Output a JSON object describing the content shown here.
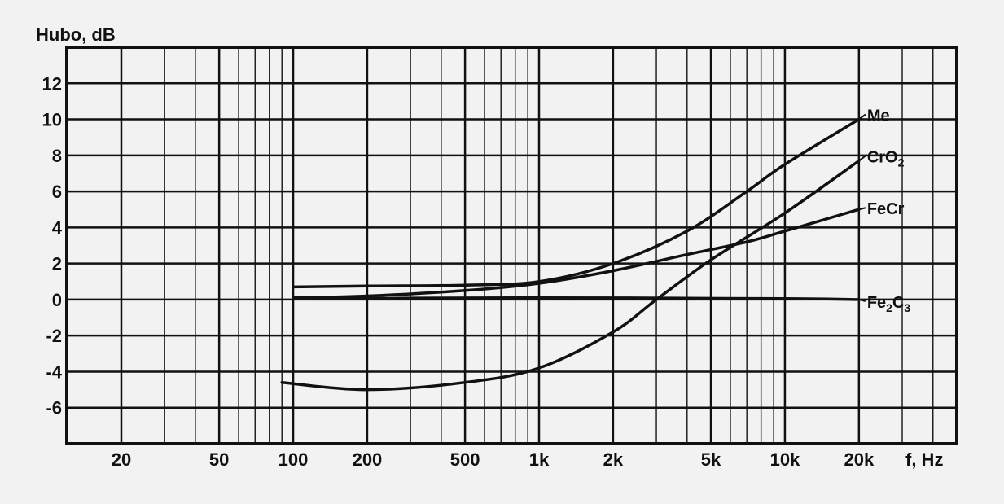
{
  "chart_data": {
    "type": "line",
    "title": "",
    "ylabel": "Hubo, dB",
    "xlabel": "f, Hz",
    "xscale": "log",
    "xlim": [
      12,
      50000
    ],
    "ylim": [
      -8,
      14
    ],
    "grid": true,
    "legend": "none (series labelled at line ends)",
    "x_ticks": [
      {
        "value": 20,
        "label": "20"
      },
      {
        "value": 50,
        "label": "50"
      },
      {
        "value": 100,
        "label": "100"
      },
      {
        "value": 200,
        "label": "200"
      },
      {
        "value": 500,
        "label": "500"
      },
      {
        "value": 1000,
        "label": "1k"
      },
      {
        "value": 2000,
        "label": "2k"
      },
      {
        "value": 5000,
        "label": "5k"
      },
      {
        "value": 10000,
        "label": "10k"
      },
      {
        "value": 20000,
        "label": "20k"
      }
    ],
    "y_ticks": [
      {
        "value": 12,
        "label": "12"
      },
      {
        "value": 10,
        "label": "10"
      },
      {
        "value": 8,
        "label": "8"
      },
      {
        "value": 6,
        "label": "6"
      },
      {
        "value": 4,
        "label": "4"
      },
      {
        "value": 2,
        "label": "2"
      },
      {
        "value": 0,
        "label": "0"
      },
      {
        "value": -2,
        "label": "-2"
      },
      {
        "value": -4,
        "label": "-4"
      },
      {
        "value": -6,
        "label": "-6"
      }
    ],
    "series": [
      {
        "name": "Me",
        "x": [
          100,
          200,
          500,
          1000,
          2000,
          4000,
          7000,
          10000,
          20000
        ],
        "y": [
          0.7,
          0.75,
          0.8,
          1.0,
          2.0,
          3.8,
          6.0,
          7.5,
          10.0
        ]
      },
      {
        "name": "CrO2",
        "x": [
          90,
          200,
          500,
          1000,
          2000,
          3000,
          5000,
          10000,
          20000
        ],
        "y": [
          -4.6,
          -5.0,
          -4.6,
          -3.8,
          -1.8,
          0.0,
          2.2,
          4.8,
          7.7
        ]
      },
      {
        "name": "FeCr",
        "x": [
          100,
          200,
          500,
          1000,
          2000,
          4000,
          7000,
          10000,
          20000
        ],
        "y": [
          0.1,
          0.2,
          0.5,
          0.9,
          1.6,
          2.5,
          3.2,
          3.8,
          5.0
        ]
      },
      {
        "name": "Fe2C3",
        "x": [
          100,
          1000,
          10000,
          20000
        ],
        "y": [
          0.05,
          0.1,
          0.05,
          0.0
        ]
      }
    ]
  }
}
